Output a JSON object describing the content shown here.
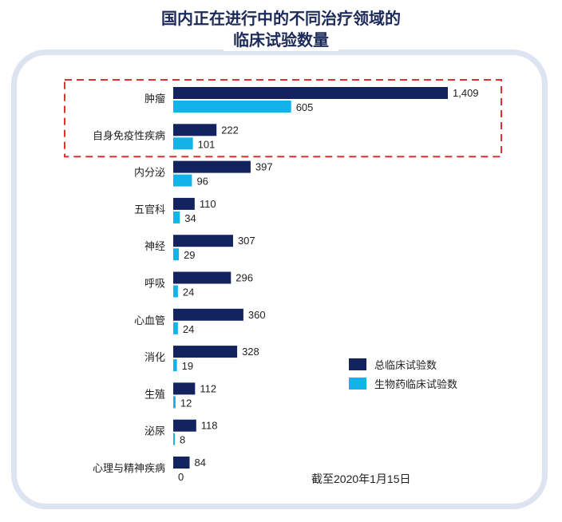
{
  "title_lines": [
    "国内正在进行中的不同治疗领域的",
    "临床试验数量"
  ],
  "note": "截至2020年1月15日",
  "colors": {
    "total": "#13235f",
    "bio": "#13b3ea",
    "highlight": "#e03030"
  },
  "chart_data": {
    "type": "bar",
    "orientation": "horizontal",
    "title": "国内正在进行中的不同治疗领域的临床试验数量",
    "categories": [
      "肿瘤",
      "自身免疫性疾病",
      "内分泌",
      "五官科",
      "神经",
      "呼吸",
      "心血管",
      "消化",
      "生殖",
      "泌尿",
      "心理与精神疾病"
    ],
    "series": [
      {
        "name": "总临床试验数",
        "values": [
          1409,
          222,
          397,
          110,
          307,
          296,
          360,
          328,
          112,
          118,
          84
        ],
        "labels": [
          "1,409",
          "222",
          "397",
          "110",
          "307",
          "296",
          "360",
          "328",
          "112",
          "118",
          "84"
        ]
      },
      {
        "name": "生物药临床试验数",
        "values": [
          605,
          101,
          96,
          34,
          29,
          24,
          24,
          19,
          12,
          8,
          0
        ],
        "labels": [
          "605",
          "101",
          "96",
          "34",
          "29",
          "24",
          "24",
          "19",
          "12",
          "8",
          "0"
        ]
      }
    ],
    "legend_position": "bottom-right",
    "highlighted_categories": [
      "肿瘤",
      "自身免疫性疾病"
    ],
    "grid": false
  }
}
